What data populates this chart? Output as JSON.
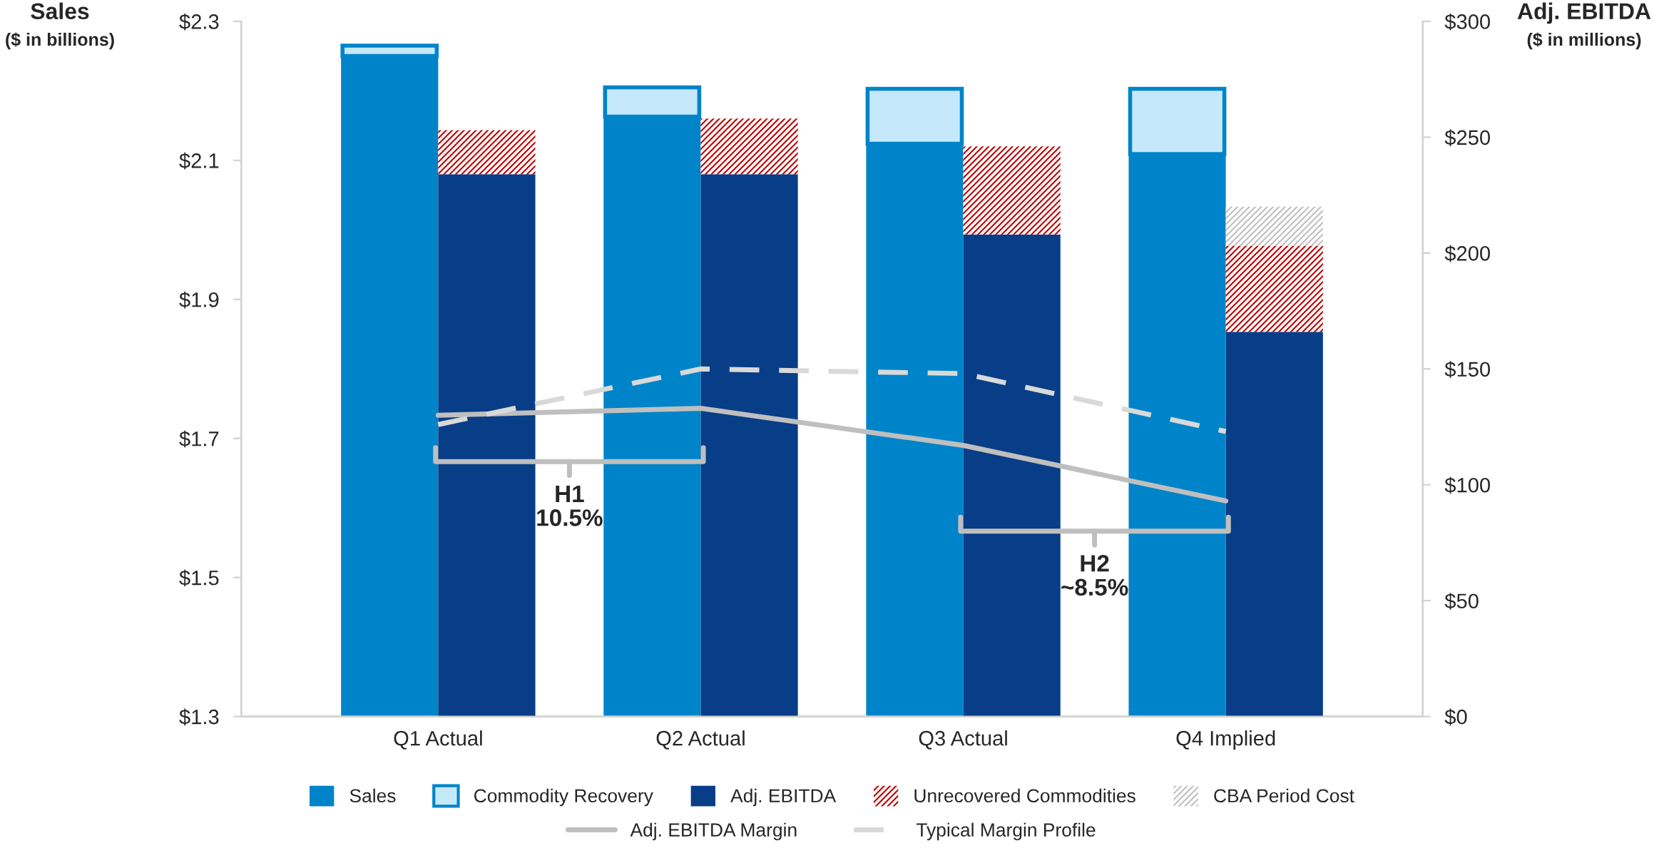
{
  "chart_data": {
    "type": "bar",
    "stacked": true,
    "categories": [
      "Q1 Actual",
      "Q2 Actual",
      "Q3 Actual",
      "Q4 Implied"
    ],
    "ylabel": "Sales\n($ in billions)",
    "y2label": "Adj. EBITDA\n($ in millions)",
    "ylim": [
      1.3,
      2.3
    ],
    "yticks": [
      {
        "value": 1.3,
        "label": "$1.3"
      },
      {
        "value": 1.5,
        "label": "$1.5"
      },
      {
        "value": 1.7,
        "label": "$1.7"
      },
      {
        "value": 1.9,
        "label": "$1.9"
      },
      {
        "value": 2.1,
        "label": "$2.1"
      },
      {
        "value": 2.3,
        "label": "$2.3"
      }
    ],
    "y2lim": [
      0,
      300
    ],
    "y2ticks": [
      {
        "value": 0,
        "label": "$0"
      },
      {
        "value": 50,
        "label": "$50"
      },
      {
        "value": 100,
        "label": "$100"
      },
      {
        "value": 150,
        "label": "$150"
      },
      {
        "value": 200,
        "label": "$200"
      },
      {
        "value": 250,
        "label": "$250"
      },
      {
        "value": 300,
        "label": "$300"
      }
    ],
    "series": [
      {
        "name": "Sales",
        "axis": "y",
        "color": "#0084c9",
        "values": [
          2.25,
          2.163,
          2.124,
          2.109
        ]
      },
      {
        "name": "Commodity Recovery",
        "axis": "y",
        "color": "#c5e9fb",
        "base": [
          2.25,
          2.163,
          2.124,
          2.109
        ],
        "values": [
          0.015,
          0.042,
          0.079,
          0.094
        ]
      },
      {
        "name": "Adj. EBITDA",
        "axis": "y2",
        "color": "#083d87",
        "values": [
          234,
          234,
          208,
          166
        ]
      },
      {
        "name": "Unrecovered Commodities",
        "axis": "y2",
        "color": "#c00000",
        "values": [
          19,
          24,
          38,
          37
        ]
      },
      {
        "name": "CBA Period Cost",
        "axis": "y2",
        "color": "#bfbfbf",
        "values": [
          null,
          null,
          null,
          17
        ]
      },
      {
        "name": "Adj. EBITDA Margin",
        "type": "line",
        "axis": "y2",
        "color": "#bfbfbf",
        "line_style": "solid",
        "values": [
          130,
          133,
          117,
          93
        ]
      },
      {
        "name": "Typical Margin Profile",
        "type": "line",
        "axis": "y2",
        "color": "#d9d9d9",
        "line_style": "dashed",
        "values": [
          126,
          150,
          148,
          123
        ]
      }
    ],
    "annotations": [
      "H1\n10.5%",
      "H2\n~8.5%"
    ],
    "grid": false,
    "legend": "bottom",
    "marker": "none"
  }
}
